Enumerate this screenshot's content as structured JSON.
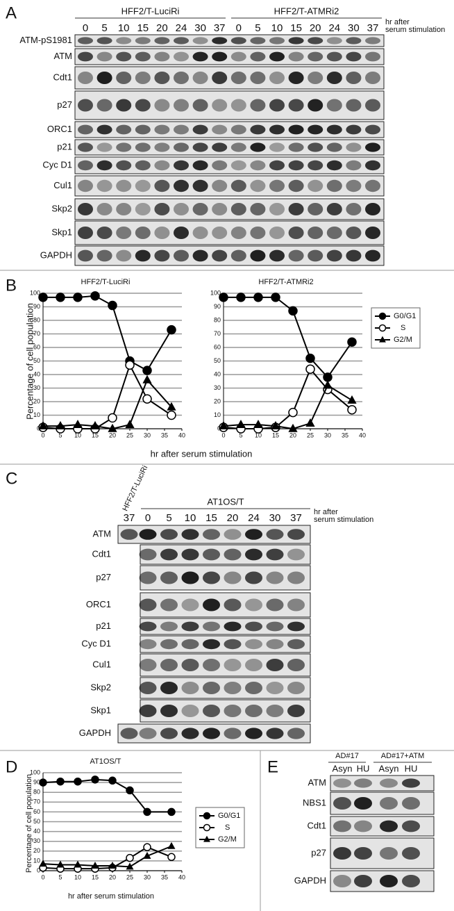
{
  "panels": [
    "A",
    "B",
    "C",
    "D",
    "E"
  ],
  "blots": [
    {
      "groups": [
        {
          "label": "HFF2/T-LuciRi",
          "lanes": [
            "0",
            "5",
            "10",
            "15",
            "20",
            "24",
            "30",
            "37"
          ]
        },
        {
          "label": "HFF2/T-ATMRi2",
          "lanes": [
            "0",
            "5",
            "10",
            "15",
            "20",
            "24",
            "30",
            "37"
          ]
        }
      ],
      "unit_label": [
        "hr after",
        "serum stimulation"
      ],
      "rows": [
        "ATM-pS1981",
        "ATM",
        "Cdt1",
        "p27",
        "ORC1",
        "p21",
        "Cyc D1",
        "Cul1",
        "Skp2",
        "Skp1",
        "GAPDH"
      ]
    },
    {
      "groups": [
        {
          "label": "HFF2/T-LuciRi",
          "lanes": [
            "37"
          ]
        },
        {
          "label": "AT1OS/T",
          "lanes": [
            "0",
            "5",
            "10",
            "15",
            "20",
            "24",
            "30",
            "37"
          ]
        }
      ],
      "unit_label": [
        "hr after",
        "serum stimulation"
      ],
      "rows": [
        "ATM",
        "Cdt1",
        "p27",
        "ORC1",
        "p21",
        "Cyc D1",
        "Cul1",
        "Skp2",
        "Skp1",
        "GAPDH"
      ]
    },
    {
      "groups": [
        {
          "label": "AD#17",
          "lanes": [
            "Asyn",
            "HU"
          ]
        },
        {
          "label": "AD#17+ATM",
          "lanes": [
            "Asyn",
            "HU"
          ]
        }
      ],
      "rows": [
        "ATM",
        "NBS1",
        "Cdt1",
        "p27",
        "GAPDH"
      ]
    }
  ],
  "chart_data": [
    {
      "type": "line",
      "title": "HFF2/T-LuciRi",
      "ylabel": "Percentage of cell population",
      "xlabel": "hr after serum stimulation",
      "x": [
        0,
        5,
        10,
        15,
        20,
        25,
        30,
        37
      ],
      "xlim": [
        0,
        40
      ],
      "xticks": [
        0,
        5,
        10,
        15,
        20,
        25,
        30,
        35,
        40
      ],
      "ylim": [
        0,
        100
      ],
      "yticks": [
        0,
        10,
        20,
        30,
        40,
        50,
        60,
        70,
        80,
        90,
        100
      ],
      "grid": true,
      "legend": false,
      "series": [
        {
          "name": "G0/G1",
          "color": "#000000",
          "marker": "filled-circle",
          "values": [
            97,
            97,
            97,
            98,
            91,
            50,
            43,
            73
          ]
        },
        {
          "name": "S",
          "color": "#000000",
          "marker": "open-circle",
          "values": [
            1,
            0,
            0,
            0,
            8,
            47,
            22,
            10
          ]
        },
        {
          "name": "G2/M",
          "color": "#000000",
          "marker": "triangle",
          "values": [
            2,
            2,
            3,
            2,
            0,
            3,
            36,
            16
          ]
        }
      ]
    },
    {
      "type": "line",
      "title": "HFF2/T-ATMRi2",
      "x": [
        0,
        5,
        10,
        15,
        20,
        25,
        30,
        37
      ],
      "xlim": [
        0,
        40
      ],
      "xticks": [
        0,
        5,
        10,
        15,
        20,
        25,
        30,
        35,
        40
      ],
      "ylim": [
        0,
        100
      ],
      "yticks": [
        0,
        10,
        20,
        30,
        40,
        50,
        60,
        70,
        80,
        90,
        100
      ],
      "grid": true,
      "legend": "right",
      "series": [
        {
          "name": "G0/G1",
          "color": "#000000",
          "marker": "filled-circle",
          "values": [
            97,
            97,
            97,
            97,
            87,
            52,
            38,
            64
          ]
        },
        {
          "name": "S",
          "color": "#000000",
          "marker": "open-circle",
          "values": [
            1,
            0,
            0,
            1,
            12,
            44,
            29,
            14
          ]
        },
        {
          "name": "G2/M",
          "color": "#000000",
          "marker": "triangle",
          "values": [
            2,
            3,
            3,
            2,
            0,
            4,
            32,
            21
          ]
        }
      ]
    },
    {
      "type": "line",
      "title": "AT1OS/T",
      "ylabel": "Percentage of cell population",
      "xlabel": "hr after serum stimulation",
      "x": [
        0,
        5,
        10,
        15,
        20,
        25,
        30,
        37
      ],
      "xlim": [
        0,
        40
      ],
      "xticks": [
        0,
        5,
        10,
        15,
        20,
        25,
        30,
        35,
        40
      ],
      "ylim": [
        0,
        100
      ],
      "yticks": [
        0,
        10,
        20,
        30,
        40,
        50,
        60,
        70,
        80,
        90,
        100
      ],
      "grid": true,
      "legend": "right",
      "series": [
        {
          "name": "G0/G1",
          "color": "#000000",
          "marker": "filled-circle",
          "values": [
            90,
            91,
            91,
            93,
            92,
            82,
            60,
            60
          ]
        },
        {
          "name": "S",
          "color": "#000000",
          "marker": "open-circle",
          "values": [
            3,
            2,
            2,
            2,
            3,
            13,
            24,
            14
          ]
        },
        {
          "name": "G2/M",
          "color": "#000000",
          "marker": "triangle",
          "values": [
            7,
            6,
            6,
            5,
            5,
            4,
            15,
            25
          ]
        }
      ]
    }
  ]
}
